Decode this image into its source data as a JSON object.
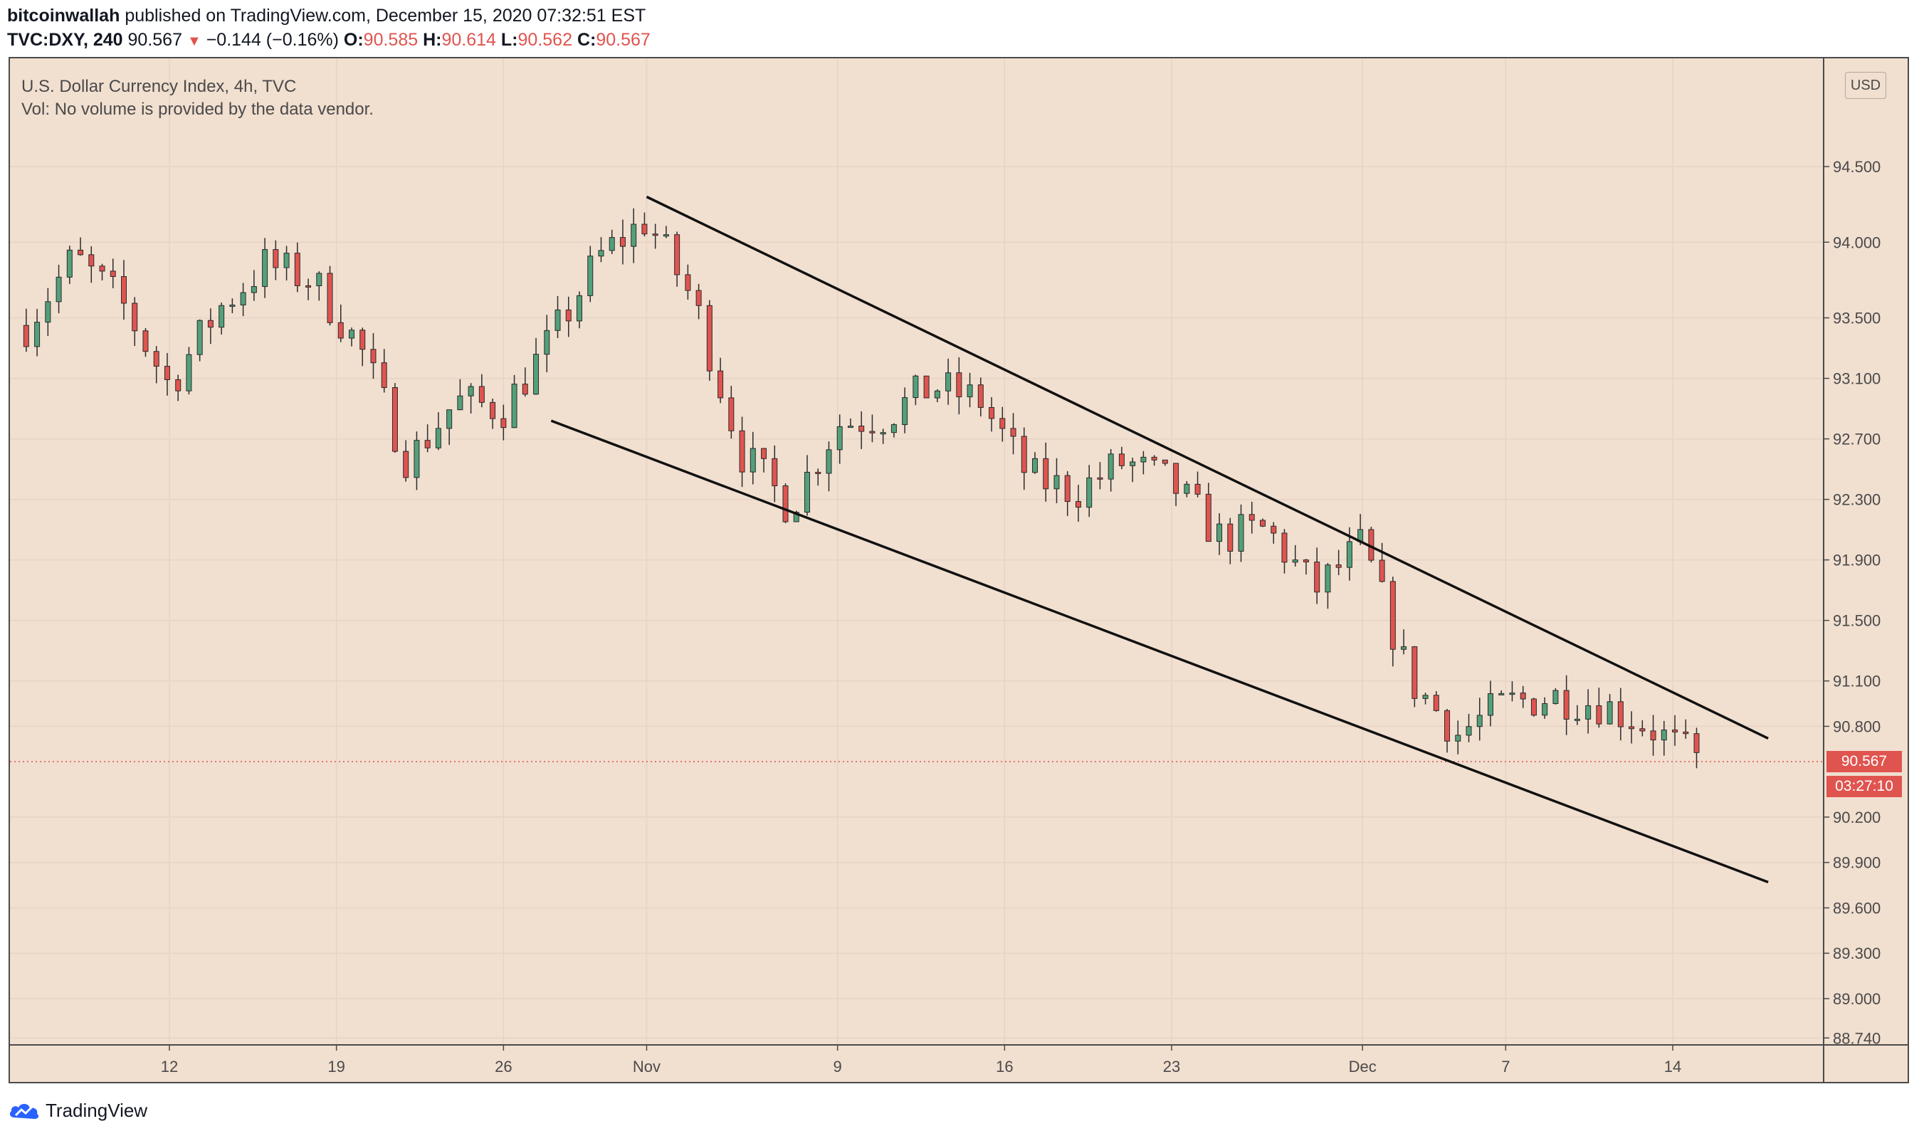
{
  "header": {
    "author": "bitcoinwallah",
    "published_text": "published on TradingView.com, December 15, 2020 07:32:51 EST",
    "symbol": "TVC:DXY, 240",
    "last": "90.567",
    "change": "−0.144 (−0.16%)",
    "o_label": "O:",
    "o": "90.585",
    "h_label": "H:",
    "h": "90.614",
    "l_label": "L:",
    "l": "90.562",
    "c_label": "C:",
    "c": "90.567"
  },
  "legend": {
    "title": "U.S. Dollar Currency Index, 4h, TVC",
    "volume": "Vol: No volume is provided by the data vendor."
  },
  "currency": "USD",
  "price_label": "90.567",
  "countdown_label": "03:27:10",
  "footer": {
    "brand": "TradingView"
  },
  "colors": {
    "background": "#f1dfd0",
    "up": "#53a07a",
    "down": "#e0544f",
    "candle_border": "#2b2b2b",
    "trendline": "#111111",
    "grid": "#e6d3c3"
  },
  "chart_data": {
    "type": "candlestick",
    "title": "U.S. Dollar Currency Index, 4h, TVC",
    "symbol": "TVC:DXY",
    "interval": "4h",
    "y_ticks": [
      "94.500",
      "94.000",
      "93.500",
      "93.100",
      "92.700",
      "92.300",
      "91.900",
      "91.500",
      "91.100",
      "90.800",
      "90.200",
      "89.900",
      "89.600",
      "89.300",
      "89.000",
      "88.740"
    ],
    "y_tick_values": [
      94.5,
      94.0,
      93.5,
      93.1,
      92.7,
      92.3,
      91.9,
      91.5,
      91.1,
      90.8,
      90.2,
      89.9,
      89.6,
      89.3,
      89.0,
      88.74
    ],
    "x_ticks": [
      "12",
      "19",
      "26",
      "Nov",
      "9",
      "16",
      "23",
      "Dec",
      "7",
      "14"
    ],
    "x_tick_dates": [
      "2020-10-12",
      "2020-10-19",
      "2020-10-26",
      "2020-11-01",
      "2020-11-09",
      "2020-11-16",
      "2020-11-23",
      "2020-12-01",
      "2020-12-07",
      "2020-12-14"
    ],
    "current_price": 90.567,
    "grid": true,
    "trendlines": [
      {
        "name": "upper",
        "start": {
          "date": "2020-11-01",
          "value": 94.3
        },
        "end": {
          "date": "2020-12-18",
          "value": 90.72
        }
      },
      {
        "name": "lower",
        "start": {
          "date": "2020-10-28",
          "value": 92.82
        },
        "end": {
          "date": "2020-12-18",
          "value": 89.77
        }
      }
    ],
    "close_series": {
      "dates": [
        "2020-10-06",
        "2020-10-08",
        "2020-10-10",
        "2020-10-12",
        "2020-10-14",
        "2020-10-16",
        "2020-10-18",
        "2020-10-20",
        "2020-10-22",
        "2020-10-24",
        "2020-10-26",
        "2020-10-28",
        "2020-10-30",
        "2020-11-01",
        "2020-11-03",
        "2020-11-05",
        "2020-11-07",
        "2020-11-09",
        "2020-11-11",
        "2020-11-13",
        "2020-11-15",
        "2020-11-17",
        "2020-11-19",
        "2020-11-21",
        "2020-11-23",
        "2020-11-25",
        "2020-11-27",
        "2020-11-29",
        "2020-12-01",
        "2020-12-03",
        "2020-12-05",
        "2020-12-07",
        "2020-12-09",
        "2020-12-11",
        "2020-12-13",
        "2020-12-15"
      ],
      "values": [
        93.45,
        93.9,
        93.6,
        93.05,
        93.55,
        93.85,
        93.75,
        93.3,
        92.55,
        92.95,
        92.9,
        93.35,
        93.9,
        94.15,
        93.6,
        92.6,
        92.25,
        92.8,
        92.85,
        93.05,
        92.95,
        92.45,
        92.35,
        92.55,
        92.4,
        92.05,
        92.1,
        91.7,
        92.0,
        91.1,
        90.75,
        90.95,
        91.0,
        90.95,
        90.8,
        90.567
      ]
    }
  }
}
